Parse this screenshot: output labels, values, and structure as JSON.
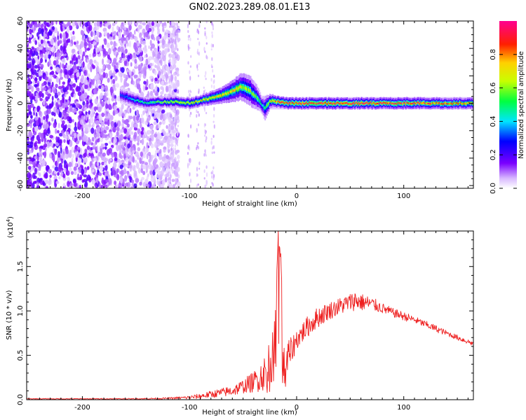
{
  "figure_title": "GN02.2023.289.08.01.E13",
  "chart_data": [
    {
      "type": "heatmap",
      "xlabel": "Height of straight line (km)",
      "ylabel": "Frequency (Hz)",
      "xlim": [
        -252,
        165
      ],
      "ylim": [
        -62,
        60
      ],
      "x_ticks": [
        -200,
        -100,
        0,
        100
      ],
      "x_tick_labels": [
        "-200",
        "-100",
        "0",
        "100"
      ],
      "y_ticks": [
        -60,
        -40,
        -20,
        0,
        20,
        40,
        60
      ],
      "y_tick_labels": [
        "-60",
        "-40",
        "-20",
        "0",
        "20",
        "40",
        "60"
      ],
      "colorbar": {
        "label": "Normalized spectral amplitude",
        "range": [
          0.0,
          1.0
        ],
        "ticks": [
          0.0,
          0.2,
          0.4,
          0.6,
          0.8
        ],
        "tick_labels": [
          "0.0",
          "0.2",
          "0.4",
          "0.6",
          "0.8"
        ],
        "colors": [
          "#ffffff",
          "#d8b8ff",
          "#7a00ff",
          "#0000ff",
          "#00e5ff",
          "#00ff40",
          "#c8ff00",
          "#ffd000",
          "#ff2000",
          "#ff0090"
        ]
      },
      "ridge": {
        "x": [
          -165,
          -150,
          -140,
          -130,
          -120,
          -110,
          -100,
          -90,
          -80,
          -70,
          -60,
          -52,
          -45,
          -40,
          -36,
          -33,
          -30,
          -25,
          -20,
          -15,
          -10,
          -5,
          0,
          20,
          60,
          100,
          165
        ],
        "freq": [
          6,
          2,
          0,
          1,
          1,
          1,
          0,
          2,
          4,
          6,
          9,
          12,
          10,
          6,
          3,
          -1,
          -4,
          2,
          1,
          1,
          0,
          0,
          0,
          0,
          0,
          0,
          0
        ],
        "amplitude": [
          0.3,
          0.45,
          0.5,
          0.55,
          0.6,
          0.65,
          0.7,
          0.7,
          0.7,
          0.72,
          0.7,
          0.65,
          0.6,
          0.55,
          0.5,
          0.45,
          0.5,
          0.7,
          0.85,
          0.9,
          0.9,
          0.9,
          0.92,
          0.9,
          0.9,
          0.9,
          0.75
        ],
        "width": [
          6,
          5,
          4,
          4,
          4,
          4,
          4,
          4,
          5,
          6,
          8,
          10,
          11,
          10,
          8,
          6,
          9,
          5,
          4,
          4,
          4,
          4,
          4,
          4,
          4,
          4,
          4
        ]
      },
      "noise_region_x": [
        -252,
        -120
      ]
    },
    {
      "type": "line",
      "xlabel": "Height of straight line (km)",
      "ylabel": "SNR (10 * v/v)",
      "y_multiplier_label": "(x10",
      "y_multiplier_exponent": "4",
      "y_multiplier_close": ")",
      "xlim": [
        -252,
        165
      ],
      "ylim": [
        0,
        1.9
      ],
      "x_ticks": [
        -200,
        -100,
        0,
        100
      ],
      "x_tick_labels": [
        "-200",
        "-100",
        "0",
        "100"
      ],
      "y_ticks": [
        0.0,
        0.5,
        1.0,
        1.5
      ],
      "y_tick_labels": [
        "0.0",
        "0.5",
        "1.0",
        "1.5"
      ],
      "color": "#ee2020",
      "series": [
        {
          "x": [
            -252,
            -220,
            -200,
            -180,
            -150,
            -120,
            -100,
            -90,
            -80,
            -70,
            -60,
            -50,
            -40,
            -30,
            -25,
            -20,
            -17,
            -15,
            -12,
            -10,
            -5,
            0,
            10,
            20,
            30,
            40,
            50,
            55,
            60,
            70,
            80,
            90,
            100,
            110,
            120,
            130,
            140,
            150,
            165
          ],
          "y": [
            0.01,
            0.01,
            0.01,
            0.01,
            0.01,
            0.015,
            0.025,
            0.04,
            0.06,
            0.08,
            0.1,
            0.15,
            0.2,
            0.3,
            0.45,
            0.7,
            1.9,
            1.6,
            0.45,
            0.4,
            0.55,
            0.68,
            0.82,
            0.93,
            1.0,
            1.05,
            1.1,
            1.12,
            1.1,
            1.08,
            1.03,
            0.98,
            0.94,
            0.9,
            0.85,
            0.8,
            0.75,
            0.7,
            0.63
          ],
          "noise": [
            0.005,
            0.005,
            0.005,
            0.005,
            0.005,
            0.01,
            0.02,
            0.03,
            0.04,
            0.05,
            0.06,
            0.08,
            0.12,
            0.2,
            0.25,
            0.3,
            0.1,
            0.1,
            0.25,
            0.3,
            0.15,
            0.12,
            0.12,
            0.12,
            0.1,
            0.1,
            0.1,
            0.12,
            0.1,
            0.08,
            0.06,
            0.05,
            0.05,
            0.04,
            0.04,
            0.04,
            0.03,
            0.03,
            0.03
          ]
        }
      ]
    }
  ]
}
